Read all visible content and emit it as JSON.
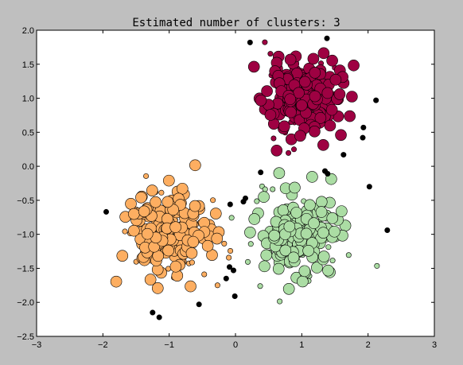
{
  "chart_data": {
    "type": "scatter",
    "title": "Estimated number of clusters: 3",
    "xlabel": "",
    "ylabel": "",
    "xlim": [
      -3,
      3
    ],
    "ylim": [
      -2.5,
      2.0
    ],
    "xticks": [
      -3,
      -2,
      -1,
      0,
      1,
      2,
      3
    ],
    "yticks": [
      -2.5,
      -2.0,
      -1.5,
      -1.0,
      -0.5,
      0.0,
      0.5,
      1.0,
      1.5,
      2.0
    ],
    "xtick_labels": [
      "−3",
      "−2",
      "−1",
      "0",
      "1",
      "2",
      "3"
    ],
    "ytick_labels": [
      "−2.5",
      "−2.0",
      "−1.5",
      "−1.0",
      "−0.5",
      "0.0",
      "0.5",
      "1.0",
      "1.5",
      "2.0"
    ],
    "grid": false,
    "legend": false,
    "colors": {
      "figure_background": "#bfbfbf",
      "axes_background": "#ffffff",
      "marker_edge": "#000000"
    },
    "series": [
      {
        "color": "#9e0142",
        "center": [
          1.0,
          1.0
        ],
        "spread": 0.27,
        "n_core": 170,
        "n_border": 35,
        "seed": 11
      },
      {
        "color": "#fdae61",
        "center": [
          -1.0,
          -1.0
        ],
        "spread": 0.31,
        "n_core": 150,
        "n_border": 45,
        "seed": 23
      },
      {
        "color": "#abdda4",
        "center": [
          1.0,
          -1.0
        ],
        "spread": 0.29,
        "n_core": 150,
        "n_border": 40,
        "seed": 37
      }
    ],
    "noise": {
      "color": "#000000",
      "points": [
        [
          0.22,
          1.82
        ],
        [
          1.38,
          1.88
        ],
        [
          2.12,
          0.97
        ],
        [
          1.93,
          0.57
        ],
        [
          1.92,
          0.42
        ],
        [
          1.63,
          0.17
        ],
        [
          1.35,
          -0.07
        ],
        [
          1.39,
          -0.11
        ],
        [
          0.38,
          -0.09
        ],
        [
          0.15,
          -0.47
        ],
        [
          0.12,
          -0.52
        ],
        [
          -0.08,
          -0.56
        ],
        [
          -1.95,
          -0.67
        ],
        [
          2.02,
          -0.3
        ],
        [
          2.29,
          -0.94
        ],
        [
          -0.09,
          -1.48
        ],
        [
          -0.03,
          -1.53
        ],
        [
          -0.14,
          -1.65
        ],
        [
          -0.01,
          -1.91
        ],
        [
          -0.55,
          -2.03
        ],
        [
          -1.25,
          -2.15
        ],
        [
          -1.15,
          -2.22
        ]
      ]
    }
  }
}
